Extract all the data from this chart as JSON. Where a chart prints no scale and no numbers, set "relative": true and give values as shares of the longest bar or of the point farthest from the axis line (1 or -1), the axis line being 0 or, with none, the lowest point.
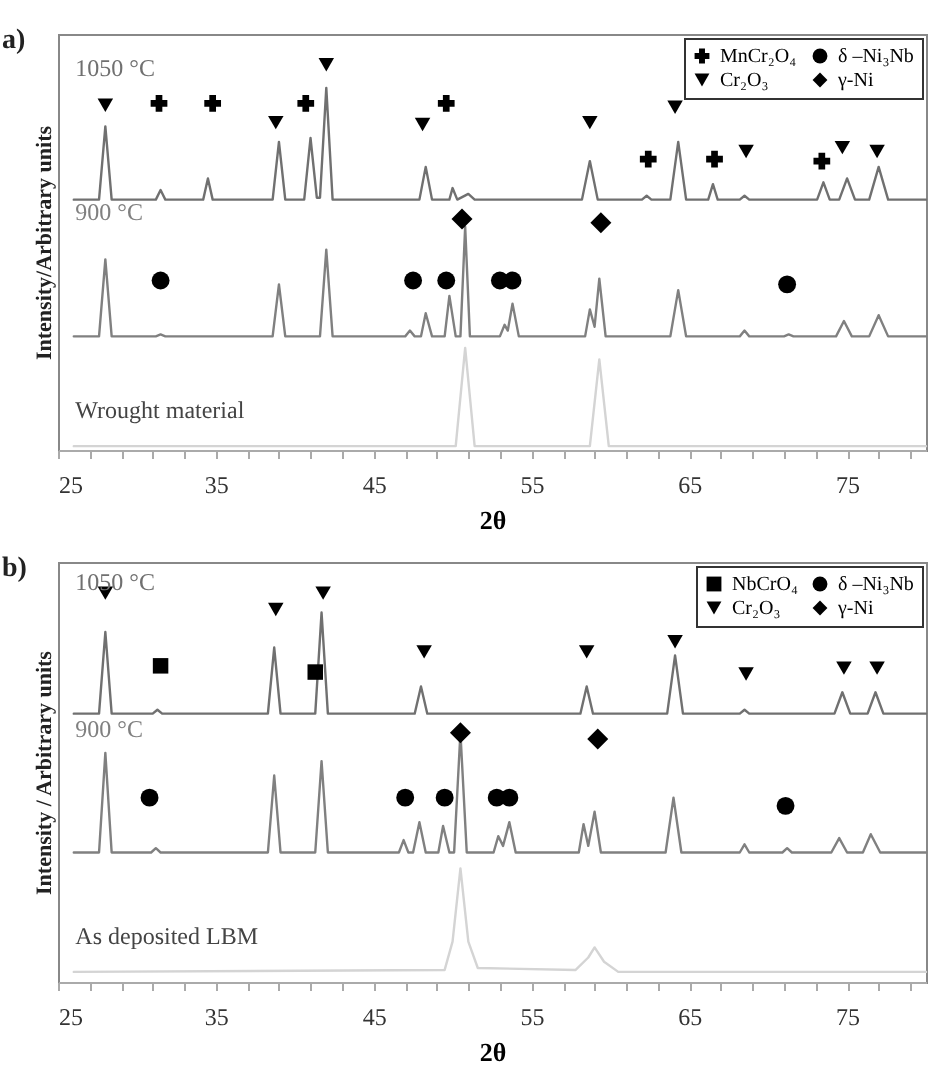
{
  "chart_data": [
    {
      "type": "line",
      "relative": true,
      "xlabel": "2θ",
      "ylabel": "Intensity/Arbitrary units",
      "annotations": [
        "a)"
      ],
      "legend": "top right",
      "grid": false,
      "xlim": [
        25,
        80
      ],
      "xticks": [
        25,
        {
          "value": 27,
          "label": null
        },
        {
          "value": 29,
          "label": null
        },
        {
          "value": 31,
          "label": null
        },
        {
          "value": 33,
          "label": null
        },
        35,
        {
          "value": 37,
          "label": null
        },
        {
          "value": 39,
          "label": null
        },
        {
          "value": 41,
          "label": null
        },
        {
          "value": 43,
          "label": null
        },
        45,
        {
          "value": 47,
          "label": null
        },
        {
          "value": 49,
          "label": null
        },
        {
          "value": 51,
          "label": null
        },
        {
          "value": 53,
          "label": null
        },
        55,
        {
          "value": 57,
          "label": null
        },
        {
          "value": 59,
          "label": null
        },
        {
          "value": 61,
          "label": null
        },
        {
          "value": 63,
          "label": null
        },
        65,
        {
          "value": 67,
          "label": null
        },
        {
          "value": 69,
          "label": null
        },
        {
          "value": 71,
          "label": null
        },
        {
          "value": 73,
          "label": null
        },
        75,
        {
          "value": 77,
          "label": null
        },
        {
          "value": 79,
          "label": null
        }
      ],
      "series": [
        {
          "type": "line",
          "name": "1050 °C",
          "color": "#707070",
          "x": [
            26,
            27.6,
            28,
            28.4,
            31.2,
            31.5,
            31.8,
            34.2,
            34.5,
            34.8,
            38.6,
            39,
            39.4,
            40.6,
            41,
            41.4,
            41.6,
            42,
            42.4,
            47.9,
            48.3,
            48.7,
            49.8,
            50,
            50.3,
            51,
            51.4,
            58.2,
            58.7,
            59.2,
            62,
            62.3,
            62.6,
            63.8,
            64.3,
            64.8,
            66.2,
            66.5,
            66.8,
            68.2,
            68.5,
            68.8,
            73.1,
            73.5,
            73.9,
            74.5,
            75,
            75.5,
            76.4,
            77,
            77.6,
            80
          ],
          "values": [
            0.65,
            0.65,
            0.84,
            0.65,
            0.65,
            0.675,
            0.65,
            0.65,
            0.705,
            0.65,
            0.65,
            0.8,
            0.65,
            0.65,
            0.81,
            0.655,
            0.655,
            0.94,
            0.65,
            0.65,
            0.735,
            0.65,
            0.65,
            0.68,
            0.65,
            0.665,
            0.65,
            0.65,
            0.75,
            0.65,
            0.65,
            0.66,
            0.65,
            0.65,
            0.8,
            0.65,
            0.65,
            0.69,
            0.65,
            0.65,
            0.66,
            0.65,
            0.65,
            0.695,
            0.65,
            0.65,
            0.705,
            0.65,
            0.65,
            0.735,
            0.65,
            0.65
          ]
        },
        {
          "type": "line",
          "name": "900 °C",
          "color": "#808080",
          "x": [
            26,
            27.6,
            28,
            28.4,
            31.2,
            31.5,
            31.8,
            38.6,
            39,
            39.4,
            41.6,
            42,
            42.4,
            47,
            47.3,
            47.6,
            48,
            48.3,
            48.7,
            49.5,
            49.8,
            50.2,
            50.5,
            50.8,
            51.1,
            53,
            53.3,
            53.5,
            53.8,
            54.2,
            58.4,
            58.7,
            59,
            59.3,
            59.7,
            63.8,
            64.3,
            64.8,
            68.2,
            68.5,
            68.8,
            71,
            71.3,
            71.6,
            74.3,
            74.8,
            75.3,
            76.4,
            77,
            77.6,
            80
          ],
          "values": [
            0.295,
            0.295,
            0.495,
            0.295,
            0.295,
            0.3,
            0.295,
            0.295,
            0.43,
            0.295,
            0.295,
            0.52,
            0.295,
            0.295,
            0.31,
            0.295,
            0.295,
            0.355,
            0.295,
            0.295,
            0.4,
            0.295,
            0.295,
            0.58,
            0.295,
            0.295,
            0.325,
            0.31,
            0.38,
            0.295,
            0.295,
            0.365,
            0.32,
            0.445,
            0.295,
            0.295,
            0.415,
            0.295,
            0.295,
            0.31,
            0.295,
            0.295,
            0.3,
            0.295,
            0.295,
            0.335,
            0.295,
            0.295,
            0.35,
            0.295,
            0.295
          ]
        },
        {
          "type": "line",
          "name": "Wrought material",
          "color": "#d4d4d4",
          "x": [
            26,
            50.2,
            50.8,
            51.4,
            58.7,
            59.3,
            59.9,
            80
          ],
          "values": [
            0.01,
            0.01,
            0.265,
            0.01,
            0.01,
            0.235,
            0.01,
            0.01
          ]
        },
        {
          "type": "scatter",
          "name": "MnCr₂O₄",
          "color": "#000000",
          "marker": "cross",
          "x": [
            31.4,
            34.8,
            40.7,
            49.6,
            62.4,
            66.6,
            73.4
          ],
          "values": [
            0.9,
            0.9,
            0.9,
            0.9,
            0.755,
            0.755,
            0.75
          ]
        },
        {
          "type": "scatter",
          "name": "Cr₂O₃",
          "color": "#000000",
          "marker": "triangle",
          "x": [
            28,
            38.8,
            42,
            48.1,
            58.7,
            64.1,
            68.6,
            74.7,
            76.9
          ],
          "values": [
            0.895,
            0.85,
            1,
            0.845,
            0.85,
            0.89,
            0.775,
            0.785,
            0.775
          ]
        },
        {
          "type": "scatter",
          "name": "δ –Ni₃Nb",
          "color": "#000000",
          "marker": "circle",
          "x": [
            31.5,
            47.5,
            49.6,
            53,
            53.8,
            71.2
          ],
          "values": [
            0.44,
            0.44,
            0.44,
            0.44,
            0.44,
            0.43
          ]
        },
        {
          "type": "scatter",
          "name": "γ-Ni",
          "color": "#000000",
          "marker": "diamond",
          "x": [
            50.6,
            59.4
          ],
          "values": [
            0.6,
            0.59
          ]
        }
      ]
    },
    {
      "type": "line",
      "relative": true,
      "xlabel": "2θ",
      "ylabel": "Intensity / Arbitrary units",
      "annotations": [
        "b)"
      ],
      "legend": "top right",
      "grid": false,
      "xlim": [
        25,
        80
      ],
      "xticks": [
        25,
        {
          "value": 27,
          "label": null
        },
        {
          "value": 29,
          "label": null
        },
        {
          "value": 31,
          "label": null
        },
        {
          "value": 33,
          "label": null
        },
        35,
        {
          "value": 37,
          "label": null
        },
        {
          "value": 39,
          "label": null
        },
        {
          "value": 41,
          "label": null
        },
        {
          "value": 43,
          "label": null
        },
        45,
        {
          "value": 47,
          "label": null
        },
        {
          "value": 49,
          "label": null
        },
        {
          "value": 51,
          "label": null
        },
        {
          "value": 53,
          "label": null
        },
        55,
        {
          "value": 57,
          "label": null
        },
        {
          "value": 59,
          "label": null
        },
        {
          "value": 61,
          "label": null
        },
        {
          "value": 63,
          "label": null
        },
        65,
        {
          "value": 67,
          "label": null
        },
        {
          "value": 69,
          "label": null
        },
        {
          "value": 71,
          "label": null
        },
        {
          "value": 73,
          "label": null
        },
        75,
        {
          "value": 77,
          "label": null
        },
        {
          "value": 79,
          "label": null
        }
      ],
      "series": [
        {
          "type": "line",
          "name": "1050 °C",
          "color": "#707070",
          "x": [
            26,
            27.6,
            28,
            28.4,
            31,
            31.3,
            31.6,
            38.3,
            38.7,
            39.1,
            41.3,
            41.7,
            42.1,
            47.6,
            48,
            48.4,
            58.1,
            58.5,
            58.9,
            63.6,
            64.1,
            64.6,
            68.2,
            68.5,
            68.8,
            74.2,
            74.7,
            75.2,
            76.3,
            76.8,
            77.3,
            80
          ],
          "values": [
            0.69,
            0.69,
            0.9,
            0.69,
            0.69,
            0.7,
            0.69,
            0.69,
            0.86,
            0.69,
            0.69,
            0.95,
            0.69,
            0.69,
            0.76,
            0.69,
            0.69,
            0.76,
            0.69,
            0.69,
            0.84,
            0.69,
            0.69,
            0.7,
            0.69,
            0.69,
            0.745,
            0.69,
            0.69,
            0.745,
            0.69,
            0.69
          ]
        },
        {
          "type": "line",
          "name": "900 °C",
          "color": "#808080",
          "x": [
            26,
            27.6,
            28,
            28.4,
            30.9,
            31.2,
            31.5,
            38.3,
            38.7,
            39.1,
            41.3,
            41.7,
            42.1,
            46.6,
            46.9,
            47.2,
            47.5,
            47.9,
            48.3,
            49.1,
            49.4,
            49.8,
            50.1,
            50.5,
            50.9,
            52.6,
            52.9,
            53.2,
            53.6,
            54,
            58,
            58.3,
            58.6,
            59,
            59.4,
            63.5,
            64,
            64.5,
            68.2,
            68.5,
            68.8,
            70.9,
            71.2,
            71.5,
            74,
            74.5,
            75,
            76,
            76.5,
            77.1,
            80
          ],
          "values": [
            0.333,
            0.333,
            0.589,
            0.333,
            0.333,
            0.344,
            0.333,
            0.333,
            0.531,
            0.333,
            0.333,
            0.568,
            0.333,
            0.333,
            0.365,
            0.333,
            0.333,
            0.411,
            0.333,
            0.333,
            0.401,
            0.333,
            0.333,
            0.641,
            0.333,
            0.333,
            0.375,
            0.35,
            0.411,
            0.333,
            0.333,
            0.406,
            0.35,
            0.438,
            0.333,
            0.333,
            0.474,
            0.333,
            0.333,
            0.354,
            0.333,
            0.333,
            0.344,
            0.333,
            0.333,
            0.37,
            0.333,
            0.333,
            0.38,
            0.333,
            0.333
          ]
        },
        {
          "type": "line",
          "name": "As deposited LBM",
          "color": "#d4d4d4",
          "x": [
            26,
            49.5,
            50,
            50.5,
            51,
            51.6,
            57.8,
            58.6,
            59,
            59.6,
            60.5,
            80
          ],
          "values": [
            0.026,
            0.031,
            0.104,
            0.292,
            0.104,
            0.036,
            0.031,
            0.063,
            0.089,
            0.052,
            0.026,
            0.026
          ]
        },
        {
          "type": "scatter",
          "name": "NbCrO₄",
          "color": "#000000",
          "marker": "square",
          "x": [
            31.5,
            41.3
          ],
          "values": [
            0.813,
            0.797
          ]
        },
        {
          "type": "scatter",
          "name": "Cr₂O₃",
          "color": "#000000",
          "marker": "triangle",
          "x": [
            28,
            38.8,
            41.8,
            48.2,
            58.5,
            64.1,
            68.6,
            74.8,
            76.9
          ],
          "values": [
            1,
            0.958,
            1,
            0.849,
            0.849,
            0.875,
            0.792,
            0.807,
            0.807
          ]
        },
        {
          "type": "scatter",
          "name": "δ –Ni₃Nb",
          "color": "#000000",
          "marker": "circle",
          "x": [
            30.8,
            47,
            49.5,
            52.8,
            53.6,
            71.1
          ],
          "values": [
            0.474,
            0.474,
            0.474,
            0.474,
            0.474,
            0.453
          ]
        },
        {
          "type": "scatter",
          "name": "γ-Ni",
          "color": "#000000",
          "marker": "diamond",
          "x": [
            50.5,
            59.2
          ],
          "values": [
            0.641,
            0.625
          ]
        }
      ]
    }
  ]
}
